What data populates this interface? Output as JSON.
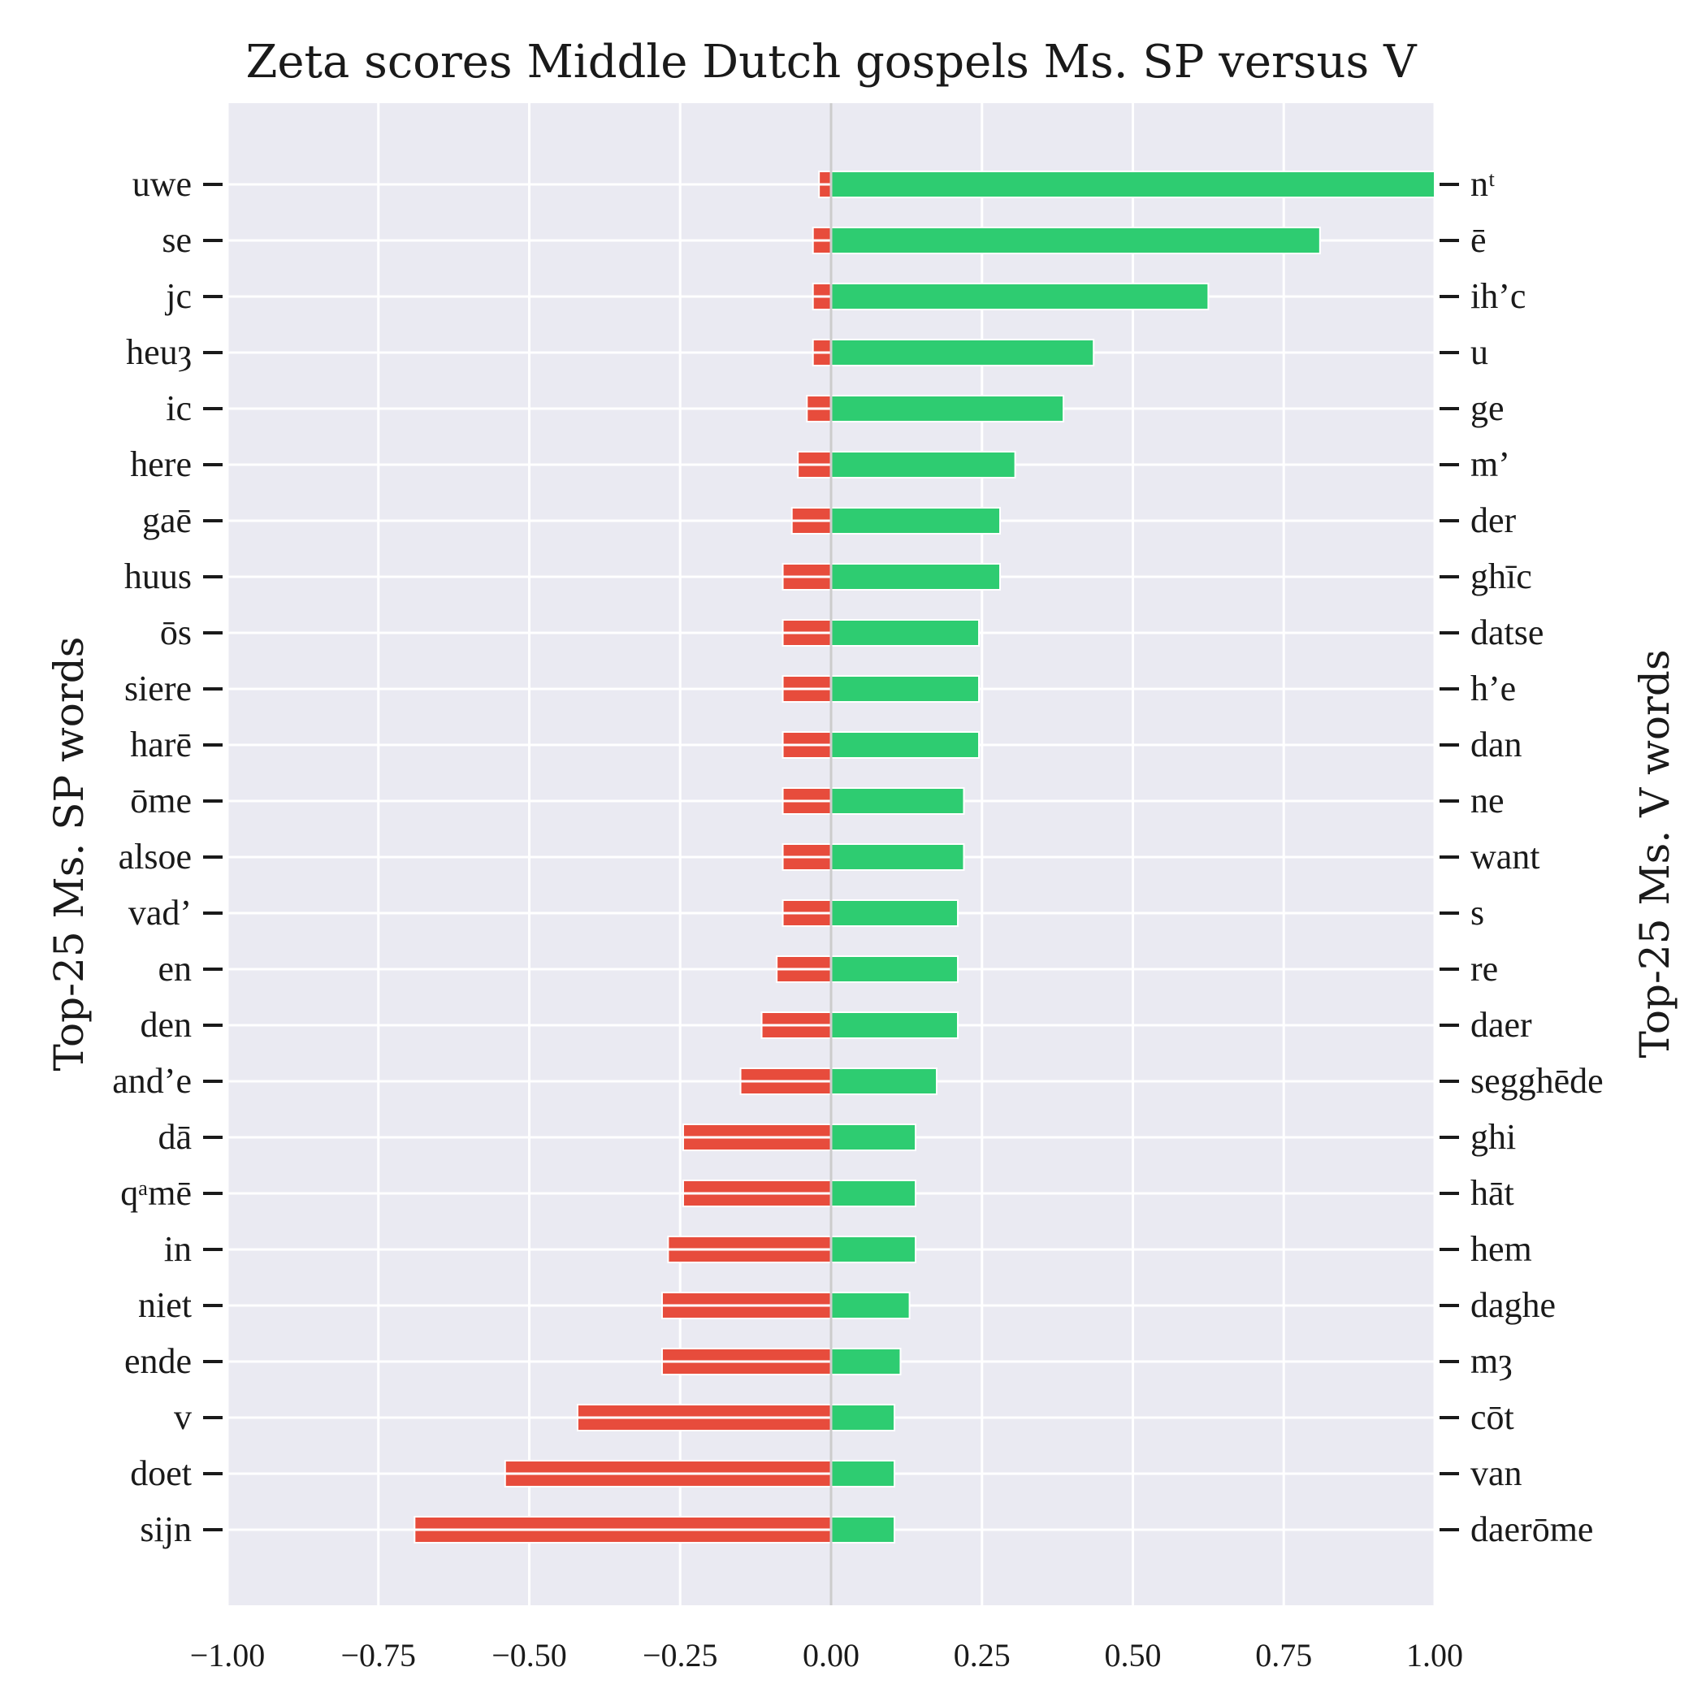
{
  "chart_data": {
    "type": "bar",
    "orientation": "horizontal-diverging",
    "title": "Zeta scores Middle Dutch gospels Ms. SP versus V",
    "ylabel_left": "Top-25 Ms. SP words",
    "ylabel_right": "Top-25 Ms. V words",
    "xlim": [
      -1.0,
      1.0
    ],
    "xticks": [
      "−1.00",
      "−0.75",
      "−0.50",
      "−0.25",
      "0.00",
      "0.25",
      "0.50",
      "0.75",
      "1.00"
    ],
    "xtick_values": [
      -1.0,
      -0.75,
      -0.5,
      -0.25,
      0.0,
      0.25,
      0.5,
      0.75,
      1.0
    ],
    "grid": true,
    "colors": {
      "negative": "#e74c3c",
      "positive": "#2ecc71",
      "background": "#eaeaf2",
      "zero_line": "#cccccc"
    },
    "series": [
      {
        "name": "Top-25 Ms. SP words",
        "words": [
          "uwe",
          "se",
          "jc",
          "heuȝ",
          "ic",
          "here",
          "gaē",
          "huus",
          "ōs",
          "siere",
          "harē",
          "ōme",
          "alsoe",
          "vad’",
          "en",
          "den",
          "and’e",
          "dā",
          "qᵃmē",
          "in",
          "niet",
          "ende",
          "v",
          "doet",
          "sijn"
        ],
        "values": [
          -0.02,
          -0.03,
          -0.03,
          -0.03,
          -0.04,
          -0.055,
          -0.065,
          -0.08,
          -0.08,
          -0.08,
          -0.08,
          -0.08,
          -0.08,
          -0.08,
          -0.09,
          -0.115,
          -0.15,
          -0.245,
          -0.245,
          -0.27,
          -0.28,
          -0.28,
          -0.42,
          -0.54,
          -0.69
        ]
      },
      {
        "name": "Top-25 Ms. V words",
        "words": [
          "nᵗ",
          "ē",
          "ih’c",
          "u",
          "ge",
          "m’",
          "der",
          "ghīc",
          "datse",
          "h’e",
          "dan",
          "ne",
          "want",
          "s",
          "re",
          "daer",
          "segghēde",
          "ghi",
          "hāt",
          "hem",
          "daghe",
          "mȝ",
          "cōt",
          "van",
          "daerōme"
        ],
        "values": [
          1.0,
          0.81,
          0.625,
          0.435,
          0.385,
          0.305,
          0.28,
          0.28,
          0.245,
          0.245,
          0.245,
          0.22,
          0.22,
          0.21,
          0.21,
          0.21,
          0.175,
          0.14,
          0.14,
          0.14,
          0.13,
          0.115,
          0.105,
          0.105,
          0.105
        ]
      }
    ]
  }
}
